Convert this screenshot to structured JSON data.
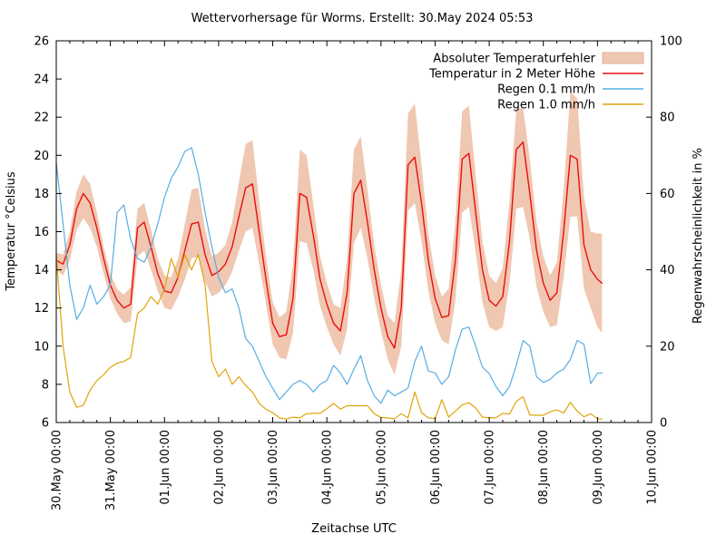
{
  "chart_data": {
    "type": "line",
    "title": "Wettervorhersage für Worms. Erstellt: 30.May 2024 05:53",
    "xlabel": "Zeitachse UTC",
    "ylabel_left": "Temperatur °Celsius",
    "ylabel_right": "Regenwahrscheinlichkeit in %",
    "background_color": "#ffffff",
    "border_color": "#000000",
    "grid": "off",
    "legend_position": "top-right-inside",
    "x_axis": {
      "range_hours": [
        0,
        264
      ],
      "major_every_hours": 24,
      "minor_every_hours": 6,
      "labels": [
        "30.May 00:00",
        "31.May 00:00",
        "01.Jun 00:00",
        "02.Jun 00:00",
        "03.Jun 00:00",
        "04.Jun 00:00",
        "05.Jun 00:00",
        "06.Jun 00:00",
        "07.Jun 00:00",
        "08.Jun 00:00",
        "09.Jun 00:00",
        "10.Jun 00:00"
      ]
    },
    "y_left": {
      "min": 6,
      "max": 26,
      "ticks": [
        6,
        8,
        10,
        12,
        14,
        16,
        18,
        20,
        22,
        24,
        26
      ]
    },
    "y_right": {
      "min": 0,
      "max": 100,
      "ticks": [
        0,
        20,
        40,
        60,
        80,
        100
      ]
    },
    "legend": [
      {
        "label": "Absoluter Temperaturfehler",
        "type": "band",
        "color": "#f0c7b1",
        "border": "#dfb09a"
      },
      {
        "label": "Temperatur in 2 Meter Höhe",
        "type": "line",
        "color": "#e90f0f"
      },
      {
        "label": "Regen 0.1 mm/h",
        "type": "line",
        "color": "#58ade4"
      },
      {
        "label": "Regen 1.0 mm/h",
        "type": "line",
        "color": "#e0a408"
      }
    ],
    "sampling": {
      "step_hours": 3,
      "last_hour": 242,
      "start": "30.May 00:00 UTC"
    },
    "series": {
      "temperature_error_band": {
        "name": "Absoluter Temperaturfehler",
        "axis": "left",
        "color": "#f0c7b1",
        "upper": [
          14.9,
          14.8,
          16.0,
          18.1,
          19.0,
          18.5,
          17.0,
          15.2,
          13.8,
          13.0,
          12.7,
          13.1,
          17.2,
          17.5,
          16.1,
          14.6,
          13.7,
          13.6,
          14.6,
          16.4,
          18.2,
          18.3,
          16.1,
          14.7,
          14.9,
          15.3,
          16.5,
          18.6,
          20.6,
          20.8,
          17.6,
          14.7,
          12.3,
          11.5,
          11.8,
          14.3,
          20.3,
          20.0,
          17.4,
          14.7,
          13.3,
          12.2,
          12.0,
          14.6,
          20.3,
          21.0,
          18.2,
          15.3,
          13.2,
          11.6,
          11.2,
          14.0,
          22.2,
          22.7,
          19.5,
          15.9,
          13.7,
          12.6,
          13.0,
          16.5,
          22.3,
          22.6,
          18.9,
          15.5,
          13.7,
          13.3,
          14.1,
          17.6,
          22.4,
          22.5,
          19.8,
          16.5,
          14.7,
          13.7,
          14.4,
          18.2,
          23.3,
          23.0,
          17.8,
          16.0,
          15.9,
          15.9
        ],
        "lower": [
          14.0,
          13.7,
          14.5,
          16.1,
          16.7,
          16.2,
          15.2,
          13.8,
          12.5,
          11.7,
          11.2,
          11.3,
          14.7,
          15.0,
          14.0,
          12.9,
          12.0,
          11.9,
          12.6,
          13.5,
          14.6,
          14.7,
          13.4,
          12.6,
          12.8,
          13.2,
          13.9,
          15.0,
          16.0,
          16.2,
          14.3,
          12.2,
          10.1,
          9.4,
          9.3,
          10.7,
          15.5,
          15.4,
          14.0,
          12.1,
          11.0,
          10.1,
          9.5,
          10.9,
          15.4,
          16.2,
          14.6,
          12.5,
          10.8,
          9.3,
          8.5,
          10.0,
          17.1,
          17.5,
          15.5,
          12.9,
          11.2,
          10.3,
          10.1,
          12.4,
          17.0,
          17.3,
          14.9,
          12.3,
          11.0,
          10.8,
          11.0,
          13.3,
          17.2,
          17.3,
          15.6,
          13.1,
          11.8,
          11.0,
          11.1,
          13.6,
          16.8,
          16.8,
          13.0,
          12.0,
          11.0,
          10.7
        ]
      },
      "temperature_2m": {
        "name": "Temperatur in 2 Meter Höhe",
        "axis": "left",
        "color": "#e90f0f",
        "values": [
          14.5,
          14.3,
          15.3,
          17.2,
          18.0,
          17.5,
          16.2,
          14.6,
          13.2,
          12.4,
          12.0,
          12.2,
          16.2,
          16.5,
          15.2,
          13.8,
          12.9,
          12.8,
          13.6,
          15.0,
          16.4,
          16.5,
          14.8,
          13.7,
          13.9,
          14.3,
          15.2,
          16.8,
          18.3,
          18.5,
          16.0,
          13.5,
          11.2,
          10.5,
          10.6,
          12.5,
          18.0,
          17.8,
          15.8,
          13.5,
          12.2,
          11.2,
          10.8,
          12.8,
          18.0,
          18.7,
          16.5,
          14.0,
          12.0,
          10.5,
          9.9,
          12.0,
          19.5,
          19.9,
          17.5,
          14.5,
          12.5,
          11.5,
          11.6,
          14.5,
          19.8,
          20.1,
          17.0,
          14.0,
          12.4,
          12.1,
          12.6,
          15.5,
          20.3,
          20.7,
          18.0,
          15.0,
          13.3,
          12.4,
          12.8,
          16.0,
          20.0,
          19.8,
          15.3,
          14.0,
          13.5,
          13.3
        ]
      },
      "rain_01mmh": {
        "name": "Regen 0.1 mm/h",
        "axis": "right",
        "color": "#58ade4",
        "values": [
          68,
          52,
          36,
          27,
          30,
          36,
          31,
          33,
          36,
          55,
          57,
          48,
          43,
          42,
          46,
          52,
          59,
          64,
          67,
          71,
          72,
          65,
          55,
          46,
          38,
          34,
          35,
          30,
          22,
          20,
          16,
          12,
          9,
          6,
          8,
          10,
          11,
          10,
          8,
          10,
          11,
          15,
          13,
          10,
          14,
          17.5,
          11,
          7,
          5,
          8.5,
          7,
          8,
          9,
          16,
          20,
          13.5,
          13,
          10,
          12,
          19,
          24.5,
          25,
          20,
          14.5,
          12.8,
          9.4,
          7,
          9.4,
          15,
          21.5,
          20,
          12,
          10.5,
          11.3,
          13,
          14,
          16.5,
          21.5,
          20.5,
          10.2,
          12.9,
          13
        ]
      },
      "rain_10mmh": {
        "name": "Regen 1.0 mm/h",
        "axis": "right",
        "color": "#e0a408",
        "values": [
          44,
          20,
          8,
          4,
          4.5,
          8.5,
          11,
          12.5,
          14.5,
          15.5,
          16,
          17,
          28.5,
          30,
          33,
          31,
          35,
          43,
          38,
          44,
          40,
          44,
          36,
          16,
          12,
          14,
          10,
          12,
          9.7,
          8,
          5,
          3.5,
          2.6,
          1.2,
          0.9,
          1.4,
          1.2,
          2.3,
          2.4,
          2.4,
          3.6,
          5,
          3.5,
          4.4,
          4.4,
          4.4,
          4.4,
          2.3,
          1.3,
          1.2,
          1,
          2.3,
          1.2,
          8,
          2.6,
          1.2,
          1,
          6,
          1.4,
          3,
          4.6,
          5.2,
          3.8,
          1.4,
          1.2,
          1.2,
          2.4,
          2.2,
          5.5,
          6.8,
          2,
          1.9,
          1.9,
          2.8,
          3.3,
          2.5,
          5.3,
          3,
          1.5,
          2.3,
          1,
          0.9
        ]
      }
    }
  }
}
